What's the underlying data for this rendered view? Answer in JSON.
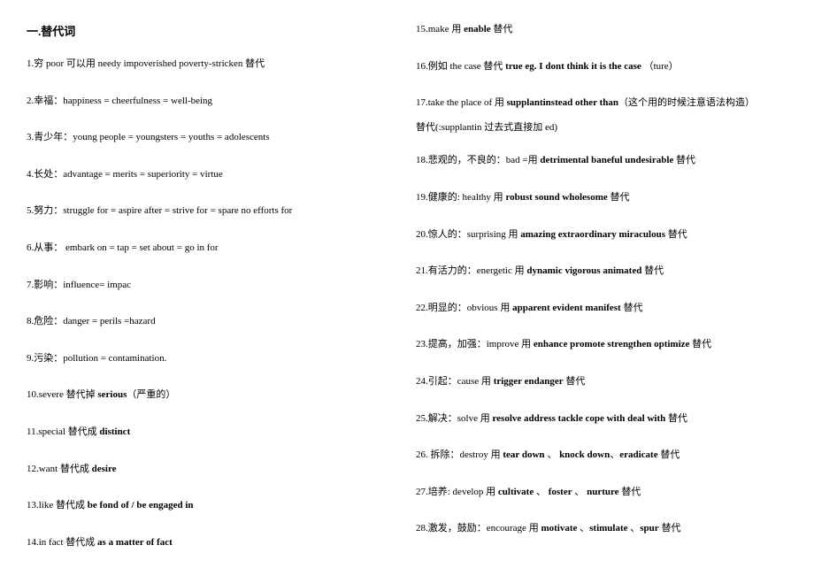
{
  "title": "一.替代词",
  "left_items": [
    "1.穷 poor  可以用 needy impoverished poverty-stricken  替代",
    "2.幸福：happiness = cheerfulness = well-being",
    "3.青少年：young people = youngsters = youths = adolescents",
    "4.长处：advantage = merits = superiority = virtue",
    "5.努力：struggle for = aspire after = strive for = spare no efforts for",
    "6.从事：  embark on = tap = set about = go in for",
    "7.影响：influence= impac",
    "8.危险：danger = perils =hazard",
    "9.污染：pollution = contamination.",
    "10.severe  替代掉 <b>serious</b>（严重的）",
    "11.special  替代成  <b>distinct</b>",
    "12.want  替代成  <b>desire</b>",
    "13.like  替代成  <b>be fond of / be engaged in</b>",
    "14.in fact 替代成 <b>as a matter of fact</b>"
  ],
  "right_items": [
    "15.make 用 <b>enable</b> 替代",
    "16.例如  the case  替代  <b>true eg. I dont think it is the case</b>  （ture）",
    "17.take the place of  用  <b>supplantinstead other than</b>（这个用的时候注意语法构造）",
    "替代(:supplantin 过去式直接加 ed)",
    "18.悲观的，不良的：bad =用 <b>detrimental baneful undesirable</b>  替代",
    "19.健康的: healthy  用  <b>robust sound wholesome</b>  替代",
    "20.惊人的：surprising  用  <b>amazing extraordinary miraculous</b>  替代",
    "21.有活力的：energetic  用  <b>dynamic vigorous animated</b>  替代",
    "22.明显的：obvious  用  <b>apparent evident manifest</b>  替代",
    "23.提高，加强：improve  用 <b>enhance promote strengthen optimize</b>  替代",
    "24.引起：cause  用  <b>trigger endanger</b> 替代",
    "25.解决：solve  用  <b>resolve address tackle cope with deal with</b>  替代",
    "26. 拆除：destroy  用  <b>tear down</b> 、 <b>knock down</b>、<b>eradicate</b> 替代",
    "27.培养: develop 用 <b>cultivate</b> 、 <b>foster</b> 、 <b>nurture</b> 替代",
    "28.激发，鼓励：encourage  用  <b>motivate</b> 、<b>stimulate</b> 、<b>spur</b> 替代"
  ]
}
